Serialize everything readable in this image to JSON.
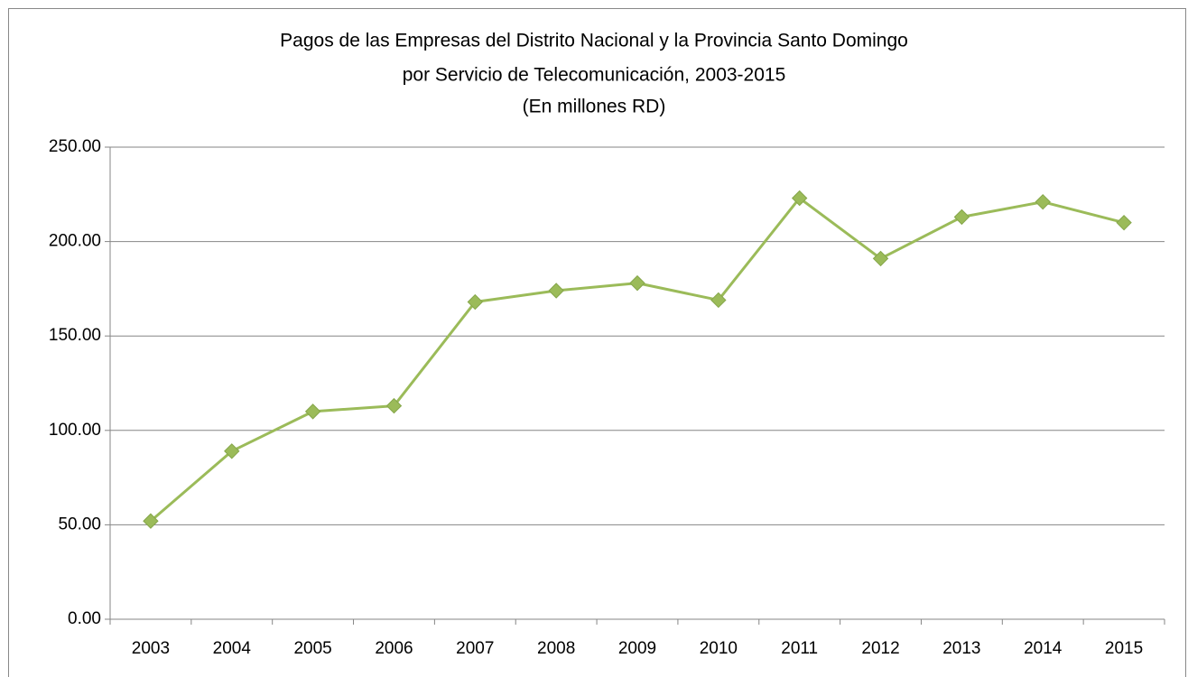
{
  "chart_data": {
    "type": "line",
    "title": [
      "Pagos de las Empresas del Distrito Nacional y la Provincia Santo Domingo",
      "por Servicio de Telecomunicación, 2003-2015",
      "(En millones RD)"
    ],
    "categories": [
      "2003",
      "2004",
      "2005",
      "2006",
      "2007",
      "2008",
      "2009",
      "2010",
      "2011",
      "2012",
      "2013",
      "2014",
      "2015"
    ],
    "series": [
      {
        "color": "#9bbb59",
        "values": [
          52,
          89,
          110,
          113,
          168,
          174,
          178,
          169,
          223,
          191,
          213,
          221,
          210
        ]
      }
    ],
    "ylim": [
      0,
      250
    ],
    "yticks": [
      {
        "value": 0,
        "label": "0.00"
      },
      {
        "value": 50,
        "label": "50.00"
      },
      {
        "value": 100,
        "label": "100.00"
      },
      {
        "value": 150,
        "label": "150.00"
      },
      {
        "value": 200,
        "label": "200.00"
      },
      {
        "value": 250,
        "label": "250.00"
      }
    ],
    "grid": true
  }
}
